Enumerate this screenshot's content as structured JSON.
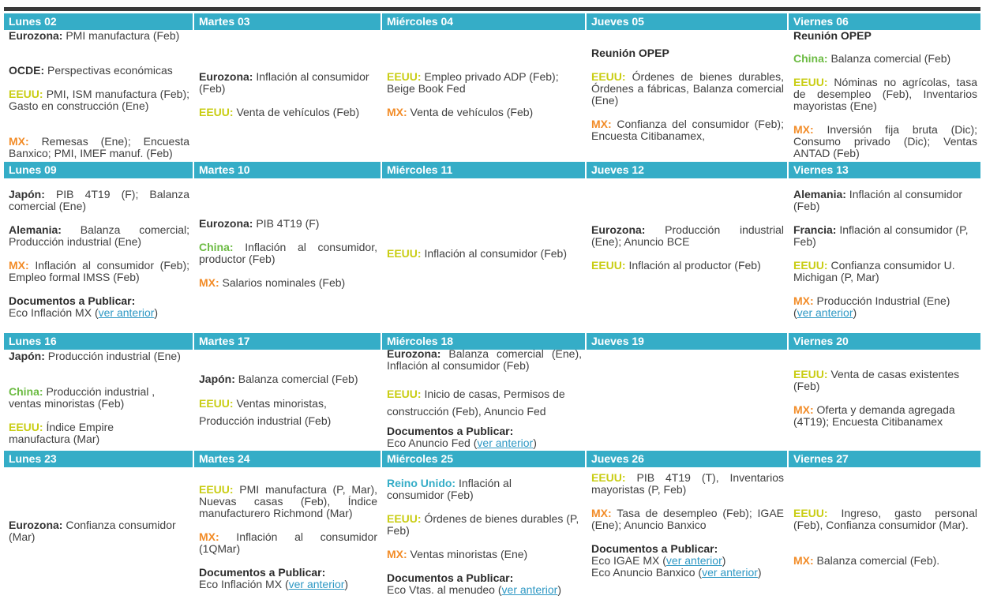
{
  "weeks": [
    {
      "days": [
        {
          "name": "Lunes 02"
        },
        {
          "name": "Martes 03"
        },
        {
          "name": "Miércoles 04"
        },
        {
          "name": "Jueves 05"
        },
        {
          "name": "Viernes 06"
        }
      ]
    },
    {
      "days": [
        {
          "name": "Lunes 09"
        },
        {
          "name": "Martes 10"
        },
        {
          "name": "Miércoles 11"
        },
        {
          "name": "Jueves 12"
        },
        {
          "name": "Viernes 13"
        }
      ]
    },
    {
      "days": [
        {
          "name": "Lunes 16"
        },
        {
          "name": "Martes 17"
        },
        {
          "name": "Miércoles 18"
        },
        {
          "name": "Jueves 19"
        },
        {
          "name": "Viernes 20"
        }
      ]
    },
    {
      "days": [
        {
          "name": "Lunes 23"
        },
        {
          "name": "Martes 24"
        },
        {
          "name": "Miércoles 25"
        },
        {
          "name": "Jueves 26"
        },
        {
          "name": "Viernes 27"
        }
      ]
    }
  ],
  "entries": {
    "w1_mon_1_label": "Eurozona:",
    "w1_mon_1_text": " PMI manufactura (Feb)",
    "w1_mon_2_label": "OCDE:",
    "w1_mon_2_text": " Perspectivas económicas",
    "w1_mon_3_label": "EEUU:",
    "w1_mon_3_text": " PMI, ISM manufactura (Feb); Gasto en construcción (Ene)",
    "w1_mon_4_label": "MX:",
    "w1_mon_4_text": " Remesas (Ene); Encuesta Banxico; PMI, IMEF manuf. (Feb)",
    "w1_tue_1_label": "Eurozona:",
    "w1_tue_1_text": " Inflación al consumidor (Feb)",
    "w1_tue_2_label": "EEUU:",
    "w1_tue_2_text": " Venta de vehículos (Feb)",
    "w1_wed_1_label": "EEUU:",
    "w1_wed_1_text": " Empleo privado ADP (Feb); Beige Book Fed",
    "w1_wed_2_label": "MX:",
    "w1_wed_2_text": " Venta de vehículos (Feb)",
    "w1_thu_1_label": "Reunión OPEP",
    "w1_thu_2_label": "EEUU:",
    "w1_thu_2_text": " Órdenes de bienes durables, Órdenes a fábricas, Balanza comercial (Ene)",
    "w1_thu_3_label": "MX:",
    "w1_thu_3_text": " Confianza del consumidor (Feb); Encuesta Citibanamex,",
    "w1_fri_1_label": "Reunión OPEP",
    "w1_fri_2_label": "China:",
    "w1_fri_2_text": " Balanza comercial (Feb)",
    "w1_fri_3_label": "EEUU:",
    "w1_fri_3_text": " Nóminas no agrícolas, tasa de desempleo (Feb), Inventarios mayoristas (Ene)",
    "w1_fri_4_label": "MX:",
    "w1_fri_4_text": " Inversión fija bruta (Dic); Consumo privado (Dic); Ventas ANTAD (Feb)",
    "w2_mon_1_label": "Japón:",
    "w2_mon_1_text": " PIB 4T19 (F); Balanza comercial (Ene)",
    "w2_mon_2_label": "Alemania:",
    "w2_mon_2_text": " Balanza comercial; Producción industrial (Ene)",
    "w2_mon_3_label": "MX:",
    "w2_mon_3_text": " Inflación al consumidor (Feb); Empleo formal IMSS (Feb)",
    "w2_mon_4_label": "Documentos a Publicar:",
    "w2_mon_4_text": "Eco Inflación MX (",
    "w2_mon_4_link": "ver anterior",
    "w2_mon_4_end": ")",
    "w2_tue_1_label": "Eurozona:",
    "w2_tue_1_text": " PIB 4T19 (F)",
    "w2_tue_2_label": "China:",
    "w2_tue_2_text": " Inflación al consumidor, productor (Feb)",
    "w2_tue_3_label": "MX:",
    "w2_tue_3_text": " Salarios nominales (Feb)",
    "w2_wed_1_label": "EEUU:",
    "w2_wed_1_text": " Inflación al consumidor (Feb)",
    "w2_thu_1_label": "Eurozona:",
    "w2_thu_1_text": " Producción industrial (Ene); Anuncio BCE",
    "w2_thu_2_label": "EEUU:",
    "w2_thu_2_text": " Inflación al productor (Feb)",
    "w2_fri_1_label": "Alemania:",
    "w2_fri_1_text": " Inflación al consumidor (Feb)",
    "w2_fri_2_label": "Francia:",
    "w2_fri_2_text": " Inflación al consumidor (P, Feb)",
    "w2_fri_3_label": "EEUU:",
    "w2_fri_3_text": " Confianza consumidor U. Michigan (P, Mar)",
    "w2_fri_4_label": "MX:",
    "w2_fri_4_text": " Producción Industrial (Ene)",
    "w2_fri_4_pre": "(",
    "w2_fri_4_link": "ver anterior",
    "w2_fri_4_end": ")",
    "w3_mon_1_label": "Japón:",
    "w3_mon_1_text": " Producción industrial (Ene)",
    "w3_mon_2_label": "China:",
    "w3_mon_2_text": " Producción industrial , ventas minoristas (Feb)",
    "w3_mon_3_label": "EEUU:",
    "w3_mon_3_text": " Índice Empire manufactura (Mar)",
    "w3_tue_1_label": "Japón:",
    "w3_tue_1_text": " Balanza comercial (Feb)",
    "w3_tue_2_label": "EEUU:",
    "w3_tue_2_text": " Ventas minoristas, Producción industrial (Feb)",
    "w3_wed_1_label": "Eurozona:",
    "w3_wed_1_text": " Balanza comercial (Ene), Inflación al consumidor (Feb)",
    "w3_wed_2_label": "EEUU:",
    "w3_wed_2_text": " Inicio de casas, Permisos de construcción (Feb), Anuncio Fed",
    "w3_wed_3_label": "Documentos a Publicar:",
    "w3_wed_3_text": "Eco Anuncio Fed (",
    "w3_wed_3_link": "ver anterior",
    "w3_wed_3_end": ")",
    "w3_fri_1_label": "EEUU:",
    "w3_fri_1_text": " Venta de casas existentes (Feb)",
    "w3_fri_2_label": "MX:",
    "w3_fri_2_text": " Oferta y demanda agregada (4T19); Encuesta Citibanamex",
    "w4_mon_1_label": "Eurozona:",
    "w4_mon_1_text": " Confianza consumidor (Mar)",
    "w4_tue_1_label": "EEUU:",
    "w4_tue_1_text": " PMI manufactura (P, Mar), Nuevas casas (Feb), Índice manufacturero Richmond (Mar)",
    "w4_tue_2_label": "MX:",
    "w4_tue_2_text": " Inflación al consumidor (1QMar)",
    "w4_tue_3_label": "Documentos a Publicar:",
    "w4_tue_3_text": "Eco Inflación MX (",
    "w4_tue_3_link": "ver anterior",
    "w4_tue_3_end": ")",
    "w4_wed_1_label": "Reino Unido:",
    "w4_wed_1_text": " Inflación al consumidor (Feb)",
    "w4_wed_2_label": "EEUU:",
    "w4_wed_2_text": " Órdenes de bienes durables (P, Feb)",
    "w4_wed_3_label": "MX:",
    "w4_wed_3_text": " Ventas minoristas (Ene)",
    "w4_wed_4_label": "Documentos a Publicar:",
    "w4_wed_4_text": "Eco Vtas. al menudeo (",
    "w4_wed_4_link": "ver anterior",
    "w4_wed_4_end": ")",
    "w4_thu_1_label": "EEUU:",
    "w4_thu_1_text": " PIB 4T19 (T), Inventarios mayoristas (P, Feb)",
    "w4_thu_2_label": "MX:",
    "w4_thu_2_text": " Tasa de desempleo (Feb); IGAE (Ene); Anuncio Banxico",
    "w4_thu_3_label": "Documentos a Publicar:",
    "w4_thu_3_text_a": "Eco IGAE MX (",
    "w4_thu_3_link_a": "ver anterior",
    "w4_thu_3_end_a": ")",
    "w4_thu_3_text_b": "Eco Anuncio Banxico (",
    "w4_thu_3_link_b": "ver anterior",
    "w4_thu_3_end_b": ")",
    "w4_fri_1_label": "EEUU:",
    "w4_fri_1_text": " Ingreso, gasto personal (Feb), Confianza consumidor (Mar).",
    "w4_fri_2_label": "MX:",
    "w4_fri_2_text": " Balanza comercial (Feb)."
  },
  "colors": {
    "header_bg": "#35adc7",
    "eeuu": "#c9cd14",
    "mx": "#f28c28",
    "china": "#6cbb43",
    "reino_unido": "#35adc7",
    "link": "#2e98c4"
  }
}
